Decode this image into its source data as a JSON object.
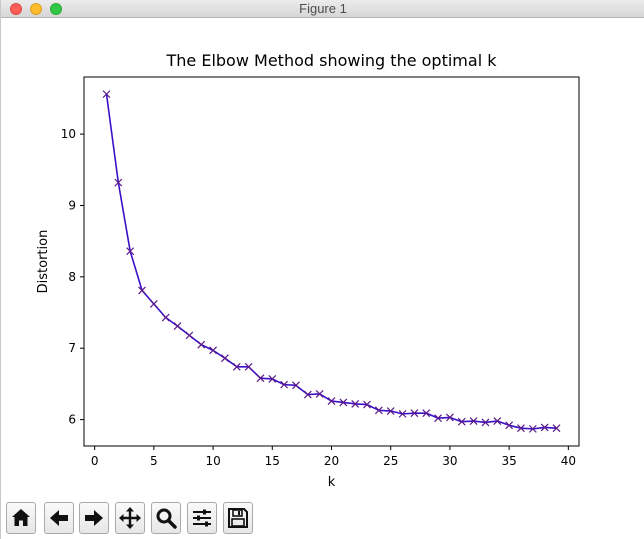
{
  "window": {
    "title": "Figure 1"
  },
  "toolbar": {
    "buttons": [
      {
        "name": "home",
        "icon": "home-icon"
      },
      {
        "name": "back",
        "icon": "arrow-left-icon"
      },
      {
        "name": "forward",
        "icon": "arrow-right-icon"
      },
      {
        "name": "pan",
        "icon": "move-icon"
      },
      {
        "name": "zoom",
        "icon": "magnifier-icon"
      },
      {
        "name": "configure-subplots",
        "icon": "sliders-icon"
      },
      {
        "name": "save",
        "icon": "floppy-disk-icon"
      }
    ]
  },
  "chart_data": {
    "type": "line",
    "title": "The Elbow Method showing the optimal k",
    "xlabel": "k",
    "ylabel": "Distortion",
    "xlim": [
      -0.9,
      40.9
    ],
    "ylim": [
      5.63,
      10.8
    ],
    "xticks": [
      0,
      5,
      10,
      15,
      20,
      25,
      30,
      35,
      40
    ],
    "yticks": [
      6,
      7,
      8,
      9,
      10
    ],
    "grid": false,
    "marker": "x",
    "line_color": "#3a10c8",
    "marker_color": "#5a1a8a",
    "series": [
      {
        "x": [
          1,
          2,
          3,
          4,
          5,
          6,
          7,
          8,
          9,
          10,
          11,
          12,
          13,
          14,
          15,
          16,
          17,
          18,
          19,
          20,
          21,
          22,
          23,
          24,
          25,
          26,
          27,
          28,
          29,
          30,
          31,
          32,
          33,
          34,
          35,
          36,
          37,
          38,
          39
        ],
        "values": [
          10.56,
          9.32,
          8.36,
          7.81,
          7.62,
          7.43,
          7.31,
          7.18,
          7.05,
          6.97,
          6.86,
          6.74,
          6.74,
          6.58,
          6.57,
          6.49,
          6.48,
          6.35,
          6.36,
          6.26,
          6.24,
          6.22,
          6.21,
          6.13,
          6.12,
          6.08,
          6.09,
          6.09,
          6.02,
          6.03,
          5.97,
          5.98,
          5.96,
          5.98,
          5.92,
          5.88,
          5.87,
          5.89,
          5.88
        ]
      }
    ]
  }
}
